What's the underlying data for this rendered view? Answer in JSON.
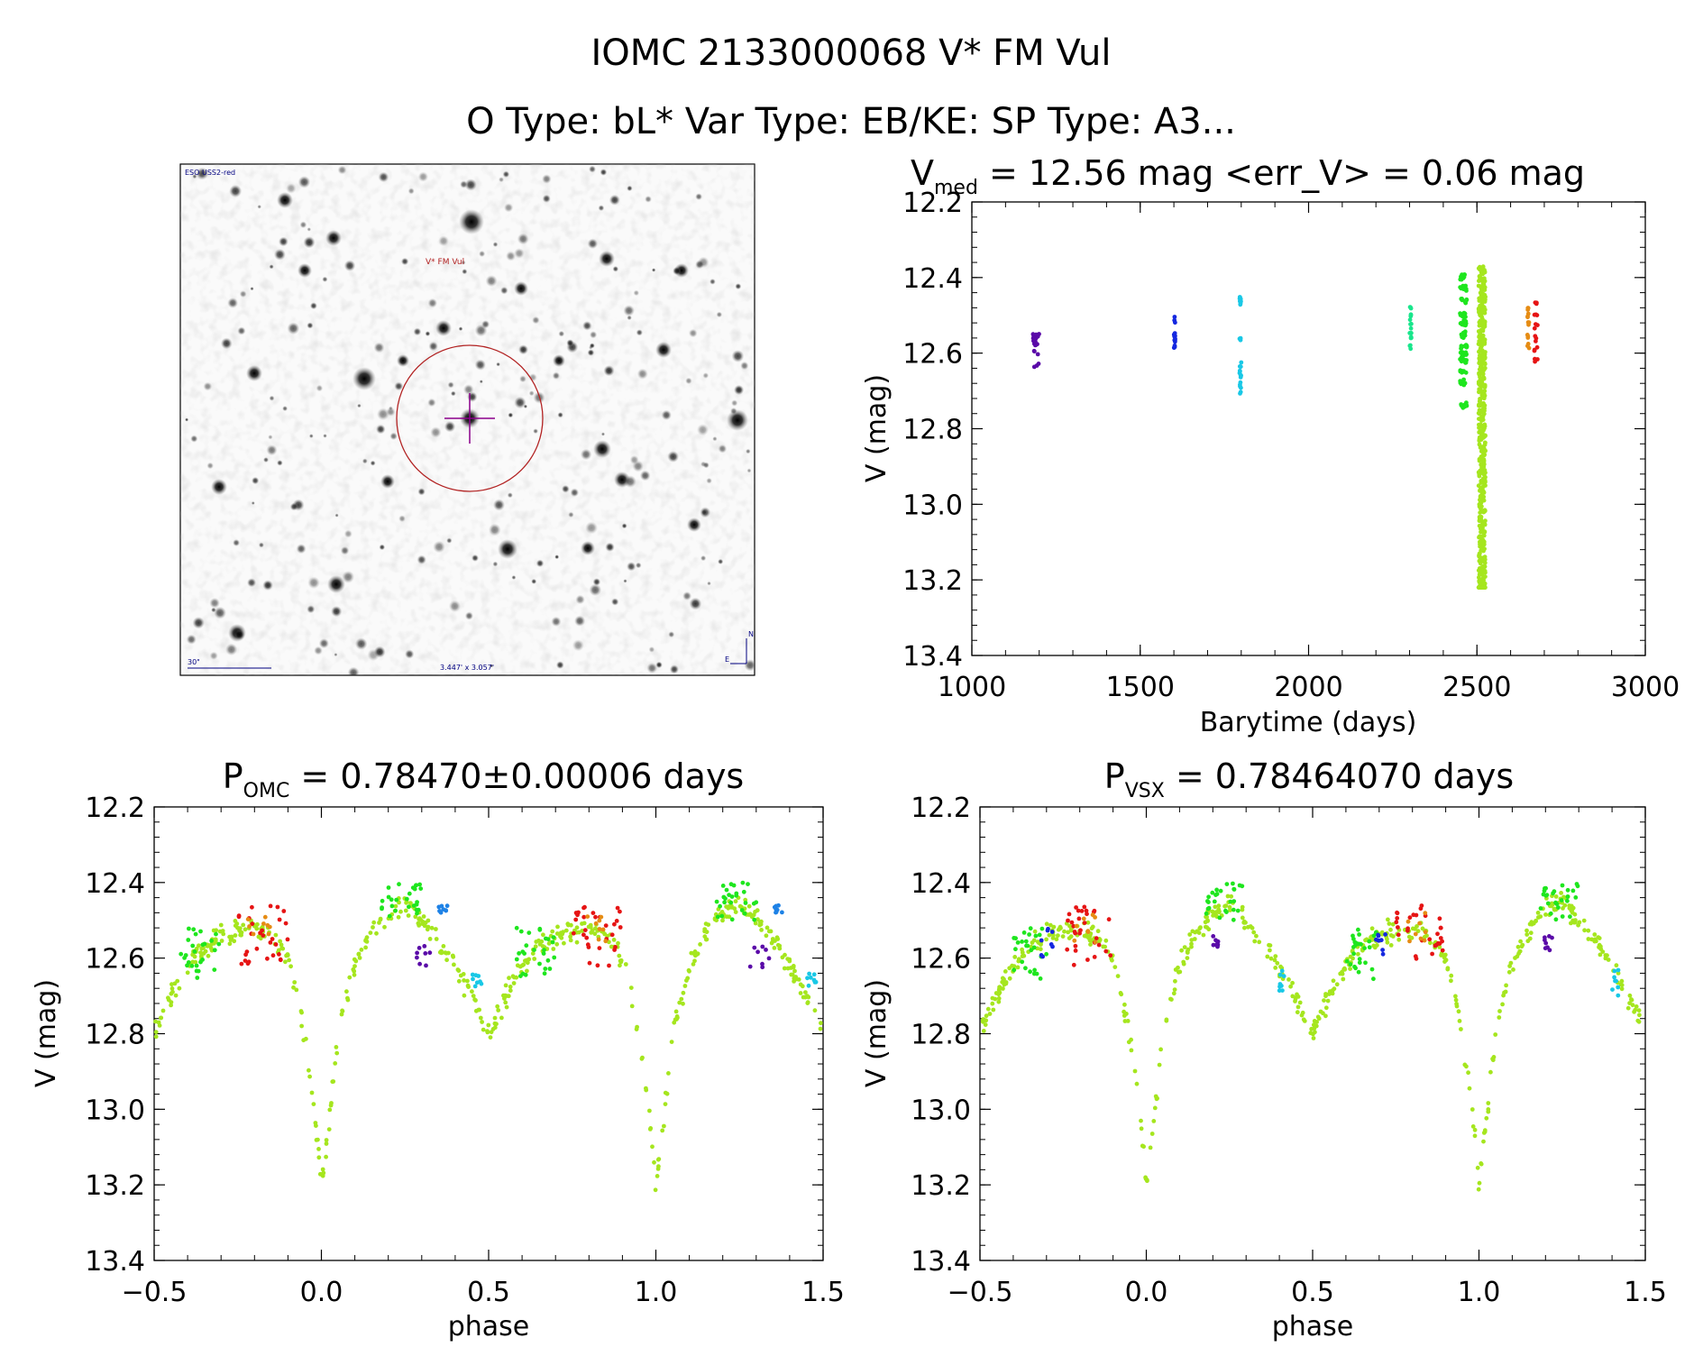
{
  "header": {
    "title": "IOMC 2133000068   V* FM Vul",
    "subtitle": "O Type: bL*  Var Type: EB/KE:  SP Type: A3..."
  },
  "finder": {
    "survey_label": "ESO USS2-red",
    "target_label": "V* FM Vul",
    "scale_label": "30\"",
    "field_label": "3.447' x 3.057'",
    "north_label": "N",
    "east_label": "E",
    "colors": {
      "circle": "#b22222",
      "cross": "#8b008b",
      "text": "#000080"
    }
  },
  "chart_data": [
    {
      "type": "scatter",
      "id": "lightcurve",
      "title_main": "V",
      "title_sub": "med",
      "title_rest": " = 12.56 mag <err_V> = 0.06 mag",
      "xlabel": "Barytime (days)",
      "ylabel": "V (mag)",
      "xlim": [
        1000,
        3000
      ],
      "ylim": [
        13.4,
        12.2
      ],
      "xticks": [
        1000,
        1500,
        2000,
        2500,
        3000
      ],
      "yticks": [
        12.2,
        12.4,
        12.6,
        12.8,
        13.0,
        13.2,
        13.4
      ],
      "series": [
        {
          "name": "epoch-1",
          "color": "#5a0aa8",
          "x_range": [
            1180,
            1200
          ],
          "values": [
            12.55,
            12.56,
            12.57,
            12.55,
            12.58,
            12.6,
            12.56,
            12.63,
            12.55
          ]
        },
        {
          "name": "epoch-2",
          "color": "#1528e0",
          "x_range": [
            1600,
            1605
          ],
          "values": [
            12.51,
            12.55,
            12.57,
            12.58,
            12.56
          ]
        },
        {
          "name": "epoch-3",
          "color": "#19c8e6",
          "x_range": [
            1795,
            1800
          ],
          "values": [
            12.45,
            12.46,
            12.47,
            12.56,
            12.63,
            12.66,
            12.68,
            12.7,
            12.65
          ]
        },
        {
          "name": "epoch-4",
          "color": "#19e68c",
          "x_range": [
            2300,
            2305
          ],
          "values": [
            12.48,
            12.5,
            12.52,
            12.54,
            12.56,
            12.58
          ]
        },
        {
          "name": "epoch-5",
          "color": "#1ee61e",
          "x_range": [
            2450,
            2470
          ],
          "values": [
            12.4,
            12.43,
            12.46,
            12.5,
            12.52,
            12.55,
            12.58,
            12.6,
            12.62,
            12.65,
            12.68,
            12.74
          ]
        },
        {
          "name": "epoch-6",
          "color": "#a5e61e",
          "x_range": [
            2505,
            2525
          ],
          "values": [
            12.37,
            12.42,
            12.46,
            12.5,
            12.55,
            12.6,
            12.65,
            12.7,
            12.75,
            12.8,
            12.85,
            12.9,
            12.95,
            13.0,
            13.05,
            13.1,
            13.15,
            13.2,
            13.22
          ]
        },
        {
          "name": "epoch-7",
          "color": "#e68c14",
          "x_range": [
            2650,
            2655
          ],
          "values": [
            12.48,
            12.5,
            12.52,
            12.55,
            12.58
          ]
        },
        {
          "name": "epoch-8",
          "color": "#e61414",
          "x_range": [
            2670,
            2680
          ],
          "values": [
            12.47,
            12.5,
            12.53,
            12.56,
            12.59,
            12.62
          ]
        }
      ]
    },
    {
      "type": "scatter",
      "id": "phase-omc",
      "title_main": "P",
      "title_sub": "OMC",
      "title_rest": " = 0.78470±0.00006 days",
      "xlabel": "phase",
      "ylabel": "V (mag)",
      "xlim": [
        -0.5,
        1.5
      ],
      "ylim": [
        13.4,
        12.2
      ],
      "xticks": [
        -0.5,
        0.0,
        0.5,
        1.0,
        1.5
      ],
      "yticks": [
        12.2,
        12.4,
        12.6,
        12.8,
        13.0,
        13.2,
        13.4
      ],
      "curve": {
        "phase": [
          0.0,
          0.02,
          0.05,
          0.1,
          0.15,
          0.2,
          0.25,
          0.3,
          0.35,
          0.4,
          0.45,
          0.5,
          0.55,
          0.6,
          0.65,
          0.7,
          0.75,
          0.8,
          0.85,
          0.9,
          0.95,
          0.98,
          1.0
        ],
        "mag": [
          13.2,
          13.05,
          12.8,
          12.62,
          12.53,
          12.48,
          12.45,
          12.5,
          12.55,
          12.62,
          12.7,
          12.8,
          12.7,
          12.62,
          12.57,
          12.54,
          12.53,
          12.52,
          12.54,
          12.6,
          12.8,
          13.0,
          13.2
        ],
        "color": "#a5e61e"
      },
      "clusters": [
        {
          "name": "red",
          "color": "#e61414",
          "phase": [
            -0.25,
            -0.1
          ],
          "mag": [
            12.46,
            12.62
          ]
        },
        {
          "name": "orange",
          "color": "#e68c14",
          "phase": [
            -0.22,
            -0.15
          ],
          "mag": [
            12.48,
            12.56
          ]
        },
        {
          "name": "green",
          "color": "#1ee61e",
          "phase": [
            0.18,
            0.3
          ],
          "mag": [
            12.4,
            12.5
          ]
        },
        {
          "name": "green-2",
          "color": "#1ee61e",
          "phase": [
            -0.42,
            -0.3
          ],
          "mag": [
            12.52,
            12.66
          ]
        },
        {
          "name": "violet",
          "color": "#5a0aa8",
          "phase": [
            0.28,
            0.35
          ],
          "mag": [
            12.55,
            12.63
          ]
        },
        {
          "name": "blue",
          "color": "#1e82e6",
          "phase": [
            0.35,
            0.38
          ],
          "mag": [
            12.46,
            12.48
          ]
        },
        {
          "name": "cyan",
          "color": "#19c8e6",
          "phase": [
            0.45,
            0.48
          ],
          "mag": [
            12.64,
            12.68
          ]
        }
      ]
    },
    {
      "type": "scatter",
      "id": "phase-vsx",
      "title_main": "P",
      "title_sub": "VSX",
      "title_rest": " = 0.78464070 days",
      "xlabel": "phase",
      "ylabel": "V (mag)",
      "xlim": [
        -0.5,
        1.5
      ],
      "ylim": [
        13.4,
        12.2
      ],
      "xticks": [
        -0.5,
        0.0,
        0.5,
        1.0,
        1.5
      ],
      "yticks": [
        12.2,
        12.4,
        12.6,
        12.8,
        13.0,
        13.2,
        13.4
      ],
      "curve": {
        "phase": [
          0.0,
          0.02,
          0.05,
          0.1,
          0.15,
          0.2,
          0.25,
          0.3,
          0.35,
          0.4,
          0.45,
          0.5,
          0.55,
          0.6,
          0.65,
          0.7,
          0.75,
          0.8,
          0.85,
          0.9,
          0.95,
          0.98,
          1.0
        ],
        "mag": [
          13.2,
          13.05,
          12.8,
          12.62,
          12.53,
          12.48,
          12.45,
          12.5,
          12.55,
          12.62,
          12.7,
          12.8,
          12.7,
          12.62,
          12.57,
          12.54,
          12.53,
          12.52,
          12.54,
          12.6,
          12.8,
          13.0,
          13.2
        ],
        "color": "#a5e61e"
      },
      "clusters": [
        {
          "name": "red",
          "color": "#e61414",
          "phase": [
            -0.25,
            -0.1
          ],
          "mag": [
            12.46,
            12.62
          ]
        },
        {
          "name": "orange",
          "color": "#e68c14",
          "phase": [
            -0.22,
            -0.15
          ],
          "mag": [
            12.48,
            12.56
          ]
        },
        {
          "name": "green",
          "color": "#1ee61e",
          "phase": [
            0.18,
            0.3
          ],
          "mag": [
            12.4,
            12.5
          ]
        },
        {
          "name": "green-2",
          "color": "#1ee61e",
          "phase": [
            -0.4,
            -0.3
          ],
          "mag": [
            12.52,
            12.66
          ]
        },
        {
          "name": "violet",
          "color": "#5a0aa8",
          "phase": [
            0.18,
            0.22
          ],
          "mag": [
            12.54,
            12.58
          ]
        },
        {
          "name": "blue",
          "color": "#1528e0",
          "phase": [
            -0.32,
            -0.28
          ],
          "mag": [
            12.52,
            12.6
          ]
        },
        {
          "name": "cyan",
          "color": "#19c8e6",
          "phase": [
            0.4,
            0.42
          ],
          "mag": [
            12.63,
            12.7
          ]
        }
      ]
    }
  ]
}
